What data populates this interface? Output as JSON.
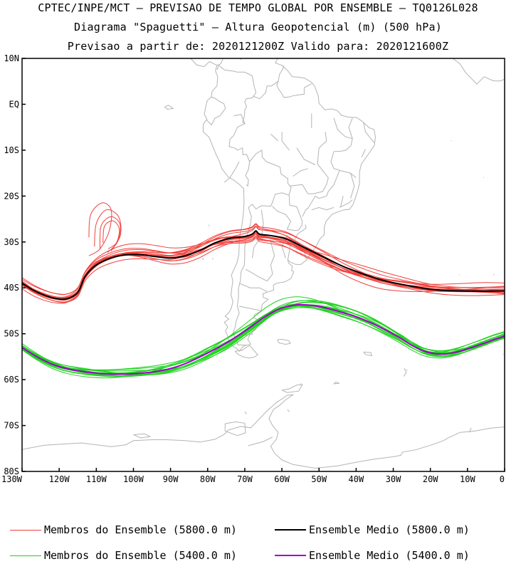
{
  "titles": {
    "line1": "CPTEC/INPE/MCT – PREVISAO DE TEMPO GLOBAL POR ENSEMBLE – TQ0126L028",
    "line2": "Diagrama \"Spaguetti\" – Altura Geopotencial (m) (500 hPa)",
    "line3": "Previsao a partir de: 2020121200Z  Valido para: 2020121600Z"
  },
  "map": {
    "lon_range": [
      -130,
      0
    ],
    "lat_range": [
      -80,
      10
    ],
    "lat_ticks": [
      {
        "value": 10,
        "label": "10N"
      },
      {
        "value": 0,
        "label": "EQ"
      },
      {
        "value": -10,
        "label": "10S"
      },
      {
        "value": -20,
        "label": "20S"
      },
      {
        "value": -30,
        "label": "30S"
      },
      {
        "value": -40,
        "label": "40S"
      },
      {
        "value": -50,
        "label": "50S"
      },
      {
        "value": -60,
        "label": "60S"
      },
      {
        "value": -70,
        "label": "70S"
      },
      {
        "value": -80,
        "label": "80S"
      }
    ],
    "lon_ticks": [
      {
        "value": -130,
        "label": "130W"
      },
      {
        "value": -120,
        "label": "120W"
      },
      {
        "value": -110,
        "label": "110W"
      },
      {
        "value": -100,
        "label": "100W"
      },
      {
        "value": -90,
        "label": "90W"
      },
      {
        "value": -80,
        "label": "80W"
      },
      {
        "value": -70,
        "label": "70W"
      },
      {
        "value": -60,
        "label": "60W"
      },
      {
        "value": -50,
        "label": "50W"
      },
      {
        "value": -40,
        "label": "40W"
      },
      {
        "value": -30,
        "label": "30W"
      },
      {
        "value": -20,
        "label": "20W"
      },
      {
        "value": -10,
        "label": "10W"
      },
      {
        "value": 0,
        "label": "0"
      }
    ],
    "colors": {
      "coast": "#b4b4b4",
      "members_5800": "#f0403c",
      "mean_5800": "#000000",
      "members_5400": "#1ed21e",
      "mean_5400": "#a000c8"
    },
    "contours": {
      "mean_5800": [
        [
          -130,
          -39
        ],
        [
          -127,
          -40.5
        ],
        [
          -124,
          -41.6
        ],
        [
          -121,
          -42.3
        ],
        [
          -118,
          -42.4
        ],
        [
          -115,
          -41
        ],
        [
          -113,
          -37.5
        ],
        [
          -110,
          -35
        ],
        [
          -106,
          -33.5
        ],
        [
          -102,
          -32.8
        ],
        [
          -98,
          -32.8
        ],
        [
          -94,
          -33.2
        ],
        [
          -90,
          -33.5
        ],
        [
          -86,
          -33
        ],
        [
          -82,
          -31.8
        ],
        [
          -78,
          -30.2
        ],
        [
          -74,
          -29.2
        ],
        [
          -70,
          -28.8
        ],
        [
          -68,
          -28.3
        ],
        [
          -67,
          -27.6
        ],
        [
          -66,
          -28.3
        ],
        [
          -63,
          -28.6
        ],
        [
          -59,
          -29.3
        ],
        [
          -55,
          -30.8
        ],
        [
          -51,
          -32.4
        ],
        [
          -47,
          -34
        ],
        [
          -43,
          -35.5
        ],
        [
          -38,
          -37
        ],
        [
          -33,
          -38.3
        ],
        [
          -28,
          -39.2
        ],
        [
          -24,
          -39.8
        ],
        [
          -20,
          -40.3
        ],
        [
          -15,
          -40.6
        ],
        [
          -10,
          -40.7
        ],
        [
          -5,
          -40.7
        ],
        [
          0,
          -40.7
        ]
      ],
      "mean_5400": [
        [
          -130,
          -53
        ],
        [
          -126,
          -55
        ],
        [
          -122,
          -56.6
        ],
        [
          -118,
          -57.6
        ],
        [
          -113,
          -58.3
        ],
        [
          -108,
          -58.7
        ],
        [
          -103,
          -58.8
        ],
        [
          -98,
          -58.6
        ],
        [
          -93,
          -58.1
        ],
        [
          -88,
          -57.1
        ],
        [
          -84,
          -55.8
        ],
        [
          -80,
          -54.2
        ],
        [
          -76,
          -52.5
        ],
        [
          -72,
          -50.5
        ],
        [
          -68,
          -48.3
        ],
        [
          -64,
          -46
        ],
        [
          -60,
          -44.4
        ],
        [
          -56,
          -43.7
        ],
        [
          -52,
          -43.8
        ],
        [
          -48,
          -44.4
        ],
        [
          -44,
          -45.3
        ],
        [
          -40,
          -46.3
        ],
        [
          -36,
          -47.6
        ],
        [
          -32,
          -49.2
        ],
        [
          -28,
          -51
        ],
        [
          -25,
          -52.5
        ],
        [
          -22,
          -53.7
        ],
        [
          -19,
          -54.3
        ],
        [
          -16,
          -54.4
        ],
        [
          -13,
          -54
        ],
        [
          -10,
          -53.3
        ],
        [
          -6,
          -52.2
        ],
        [
          -3,
          -51.3
        ],
        [
          0,
          -50.5
        ]
      ],
      "loops_5800": [
        [
          -111,
          -27
        ],
        [
          -107,
          -27
        ],
        [
          -104,
          -30
        ],
        [
          -108,
          -32
        ]
      ]
    }
  },
  "legend": {
    "members_5800": "Membros do Ensemble (5800.0 m)",
    "mean_5800": "Ensemble Medio (5800.0 m)",
    "members_5400": "Membros do Ensemble (5400.0 m)",
    "mean_5400": "Ensemble Medio (5400.0 m)"
  }
}
